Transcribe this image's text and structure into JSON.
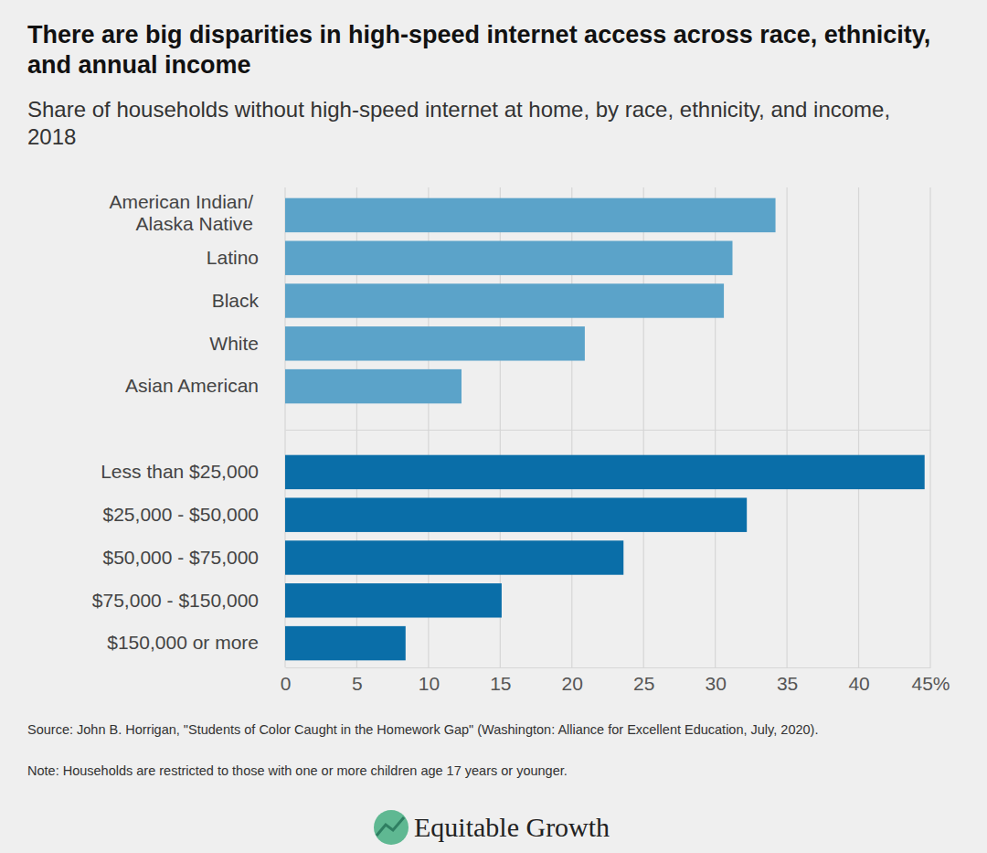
{
  "chart_data": [
    {
      "type": "bar",
      "title": "There are big disparities in high-speed internet access across race, ethnicity, and annual income",
      "subtitle": "Share of households without high-speed internet at home, by race, ethnicity, and income, 2018",
      "orientation": "horizontal",
      "categories": [
        "American Indian/Alaska Native",
        "Latino",
        "Black",
        "White",
        "Asian American"
      ],
      "values": [
        34.2,
        31.2,
        30.6,
        20.9,
        12.3
      ],
      "color": "#5ba3c9",
      "xlim": [
        0,
        45
      ],
      "xticks": [
        0,
        5,
        10,
        15,
        20,
        25,
        30,
        35,
        40,
        {
          "value": 45,
          "label": "45%"
        }
      ],
      "grid": true,
      "tick_labels": "y"
    },
    {
      "type": "bar",
      "orientation": "horizontal",
      "categories": [
        "Less than $25,000",
        "$25,000 - $50,000",
        "$50,000 - $75,000",
        "$75,000 - $150,000",
        "$150,000 or more"
      ],
      "values": [
        44.6,
        32.2,
        23.6,
        15.1,
        8.4
      ],
      "color": "#0a6ea8",
      "xlim": [
        0,
        45
      ],
      "xticks": [
        0,
        5,
        10,
        15,
        20,
        25,
        30,
        35,
        40,
        {
          "value": 45,
          "label": "45%"
        }
      ],
      "grid": true,
      "tick_labels": true
    }
  ],
  "footer": {
    "source": "Source: John B. Horrigan, \"Students of Color Caught in the Homework Gap\" (Washington: Alliance for Excellent Education, July, 2020).",
    "note": "Note: Households are restricted to those with one or more children age 17 years or younger.",
    "logo": "Equitable Growth"
  }
}
